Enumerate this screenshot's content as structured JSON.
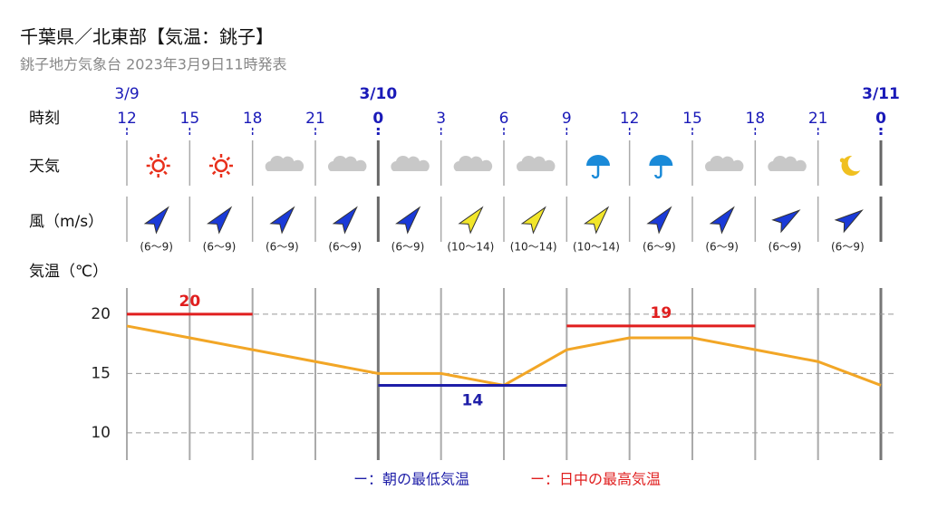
{
  "header": {
    "title": "千葉県／北東部【気温：銚子】",
    "subtitle": "銚子地方気象台 2023年3月9日11時発表"
  },
  "rows": {
    "time": "時刻",
    "weather": "天気",
    "wind": "風（m/s）",
    "temperature": "気温（℃）"
  },
  "wind_labels": [
    "(6～9)",
    "(6～9)",
    "(6～9)",
    "(6～9)",
    "(6～9)",
    "(10～14)",
    "(10～14)",
    "(10～14)",
    "(6～9)",
    "(6～9)",
    "(6～9)",
    "(6～9)"
  ],
  "chart_data": {
    "type": "line",
    "dates": [
      "3/9",
      null,
      null,
      null,
      "3/10",
      null,
      null,
      null,
      null,
      null,
      null,
      null,
      "3/11"
    ],
    "categories": [
      "12",
      "15",
      "18",
      "21",
      "0",
      "3",
      "6",
      "9",
      "12",
      "15",
      "18",
      "21",
      "0"
    ],
    "series": [
      {
        "name": "気温",
        "color": "#f2a626",
        "values": [
          19,
          18,
          17,
          16,
          15,
          15,
          14,
          17,
          18,
          18,
          17,
          16,
          14
        ]
      },
      {
        "name": "ー：日中の最高気温",
        "color": "#e01e1e",
        "values": [
          20,
          20,
          20,
          null,
          null,
          null,
          null,
          19,
          19,
          19,
          19,
          null,
          null
        ]
      },
      {
        "name": "ー：朝の最低気温",
        "color": "#1e1ea8",
        "values": [
          null,
          null,
          null,
          null,
          14,
          14,
          14,
          14,
          null,
          null,
          null,
          null,
          null
        ]
      }
    ],
    "ylim": [
      7.7,
      22.2
    ],
    "yticks": [
      10,
      15,
      20
    ],
    "grid": true
  }
}
